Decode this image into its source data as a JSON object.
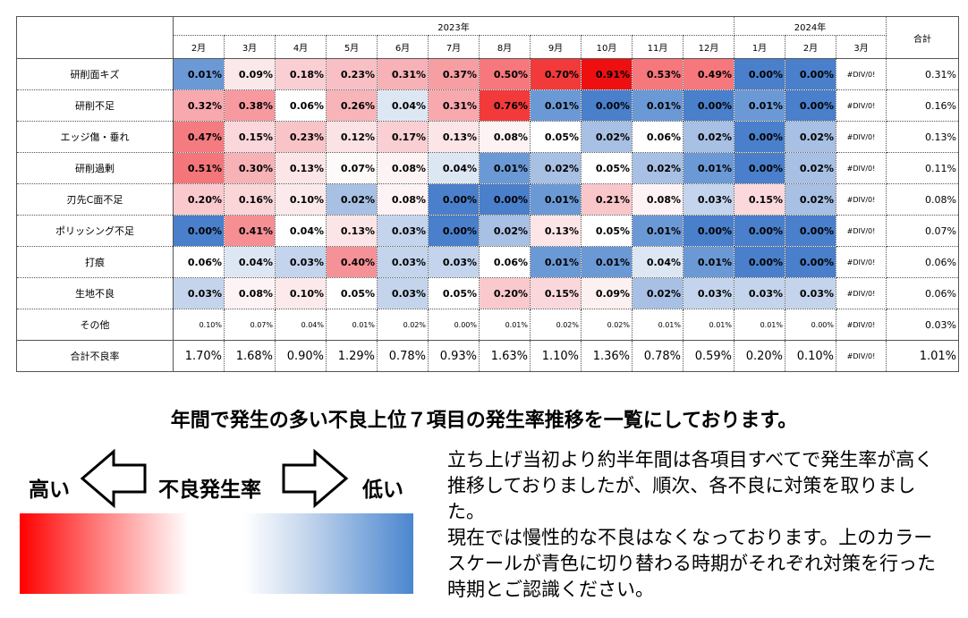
{
  "table": {
    "year_2023": "2023年",
    "year_2024": "2024年",
    "total_header": "合計",
    "months": [
      "2月",
      "3月",
      "4月",
      "5月",
      "6月",
      "7月",
      "8月",
      "9月",
      "10月",
      "11月",
      "12月",
      "1月",
      "2月",
      "3月"
    ],
    "rows": [
      {
        "label": "研削面キズ",
        "small": false,
        "values": [
          "0.01%",
          "0.09%",
          "0.18%",
          "0.23%",
          "0.31%",
          "0.37%",
          "0.50%",
          "0.70%",
          "0.91%",
          "0.53%",
          "0.49%",
          "0.00%",
          "0.00%"
        ],
        "div0": "#DIV/0!",
        "total": "0.31%",
        "colors": [
          "#6b99d6",
          "#fbe8ea",
          "#f9cfd4",
          "#f8c0c5",
          "#f7b2b7",
          "#f79ea3",
          "#f6777c",
          "#f23a3a",
          "#ee1010",
          "#f6777c",
          "#f6777c",
          "#4a7fcb",
          "#4a7fcb"
        ]
      },
      {
        "label": "研削不足",
        "small": false,
        "values": [
          "0.32%",
          "0.38%",
          "0.06%",
          "0.26%",
          "0.04%",
          "0.31%",
          "0.76%",
          "0.01%",
          "0.00%",
          "0.01%",
          "0.00%",
          "0.01%",
          "0.00%"
        ],
        "div0": "#DIV/0!",
        "total": "0.16%",
        "colors": [
          "#f7a9ae",
          "#f69a9f",
          "#ffffff",
          "#f7b4b9",
          "#dde7f4",
          "#f7a9ae",
          "#f23a3a",
          "#6b99d6",
          "#4a7fcb",
          "#6b99d6",
          "#4a7fcb",
          "#6b99d6",
          "#4a7fcb"
        ]
      },
      {
        "label": "エッジ傷・垂れ",
        "small": false,
        "values": [
          "0.47%",
          "0.15%",
          "0.23%",
          "0.12%",
          "0.17%",
          "0.13%",
          "0.08%",
          "0.05%",
          "0.02%",
          "0.06%",
          "0.02%",
          "0.00%",
          "0.02%"
        ],
        "div0": "#DIV/0!",
        "total": "0.13%",
        "colors": [
          "#f47b80",
          "#fad7da",
          "#f9c4c8",
          "#fbe3e5",
          "#f9cfd3",
          "#fbe5e7",
          "#fdf3f4",
          "#ffffff",
          "#a7c0e3",
          "#ffffff",
          "#a7c0e3",
          "#4a7fcb",
          "#a7c0e3"
        ]
      },
      {
        "label": "研削過剰",
        "small": false,
        "values": [
          "0.51%",
          "0.30%",
          "0.13%",
          "0.07%",
          "0.08%",
          "0.04%",
          "0.01%",
          "0.02%",
          "0.05%",
          "0.02%",
          "0.01%",
          "0.00%",
          "0.02%"
        ],
        "div0": "#DIV/0!",
        "total": "0.11%",
        "colors": [
          "#f4767b",
          "#f7b2b6",
          "#fbe5e7",
          "#fefafa",
          "#fdf3f4",
          "#dde7f4",
          "#6b99d6",
          "#a7c0e3",
          "#ffffff",
          "#a7c0e3",
          "#6b99d6",
          "#4a7fcb",
          "#a7c0e3"
        ]
      },
      {
        "label": "刃先C面不足",
        "small": false,
        "values": [
          "0.20%",
          "0.16%",
          "0.10%",
          "0.02%",
          "0.08%",
          "0.00%",
          "0.00%",
          "0.01%",
          "0.21%",
          "0.08%",
          "0.03%",
          "0.15%",
          "0.02%"
        ],
        "div0": "#DIV/0!",
        "total": "0.08%",
        "colors": [
          "#f9c9cd",
          "#fad6d9",
          "#fbe9eb",
          "#a7c0e3",
          "#fdf3f4",
          "#4a7fcb",
          "#4a7fcb",
          "#6b99d6",
          "#f9c6ca",
          "#fdf3f4",
          "#c3d4ec",
          "#fad8db",
          "#a7c0e3"
        ]
      },
      {
        "label": "ポリッシング不足",
        "small": false,
        "values": [
          "0.00%",
          "0.41%",
          "0.04%",
          "0.13%",
          "0.03%",
          "0.00%",
          "0.02%",
          "0.13%",
          "0.05%",
          "0.01%",
          "0.00%",
          "0.00%",
          "0.00%"
        ],
        "div0": "#DIV/0!",
        "total": "0.07%",
        "colors": [
          "#4a7fcb",
          "#f58f94",
          "#ffffff",
          "#fbe5e7",
          "#c3d4ec",
          "#4a7fcb",
          "#a7c0e3",
          "#fbe5e7",
          "#ffffff",
          "#6b99d6",
          "#4a7fcb",
          "#4a7fcb",
          "#4a7fcb"
        ]
      },
      {
        "label": "打痕",
        "small": false,
        "values": [
          "0.06%",
          "0.04%",
          "0.03%",
          "0.40%",
          "0.03%",
          "0.03%",
          "0.06%",
          "0.01%",
          "0.01%",
          "0.04%",
          "0.01%",
          "0.00%",
          "0.00%"
        ],
        "div0": "#DIV/0!",
        "total": "0.06%",
        "colors": [
          "#ffffff",
          "#dde7f4",
          "#c3d4ec",
          "#f59297",
          "#c3d4ec",
          "#c3d4ec",
          "#ffffff",
          "#6b99d6",
          "#6b99d6",
          "#dde7f4",
          "#6b99d6",
          "#4a7fcb",
          "#4a7fcb"
        ]
      },
      {
        "label": "生地不良",
        "small": false,
        "values": [
          "0.03%",
          "0.08%",
          "0.10%",
          "0.05%",
          "0.03%",
          "0.05%",
          "0.20%",
          "0.15%",
          "0.09%",
          "0.02%",
          "0.03%",
          "0.03%",
          "0.03%"
        ],
        "div0": "#DIV/0!",
        "total": "0.06%",
        "colors": [
          "#c3d4ec",
          "#fdf3f4",
          "#fbe9eb",
          "#ffffff",
          "#c3d4ec",
          "#ffffff",
          "#f9c9cd",
          "#fad7da",
          "#fcf0f1",
          "#a7c0e3",
          "#c3d4ec",
          "#c3d4ec",
          "#c3d4ec"
        ]
      },
      {
        "label": "その他",
        "small": true,
        "values": [
          "0.10%",
          "0.07%",
          "0.04%",
          "0.01%",
          "0.02%",
          "0.00%",
          "0.01%",
          "0.02%",
          "0.02%",
          "0.01%",
          "0.01%",
          "0.01%",
          "0.00%"
        ],
        "div0": "#DIV/0!",
        "total": "0.03%",
        "colors": [
          "#ffffff",
          "#ffffff",
          "#ffffff",
          "#ffffff",
          "#ffffff",
          "#ffffff",
          "#ffffff",
          "#ffffff",
          "#ffffff",
          "#ffffff",
          "#ffffff",
          "#ffffff",
          "#ffffff"
        ]
      }
    ],
    "total_row": {
      "label": "合計不良率",
      "values": [
        "1.70%",
        "1.68%",
        "0.90%",
        "1.29%",
        "0.78%",
        "0.93%",
        "1.63%",
        "1.10%",
        "1.36%",
        "0.78%",
        "0.59%",
        "0.20%",
        "0.10%"
      ],
      "div0": "#DIV/0!",
      "total": "1.01%"
    }
  },
  "headline": "年間で発生の多い不良上位７項目の発生率推移を一覧にしております。",
  "legend": {
    "high": "高い",
    "center": "不良発生率",
    "low": "低い",
    "color_high": "#ff0000",
    "color_low": "#4a86cf"
  },
  "note": {
    "para1": "立ち上げ当初より約半年間は各項目すべてで発生率が高く推移しておりましたが、順次、各不良に対策を取りました。",
    "para2": "現在では慢性的な不良はなくなっております。上のカラースケールが青色に切り替わる時期がそれぞれ対策を行った時期とご認識ください。"
  }
}
